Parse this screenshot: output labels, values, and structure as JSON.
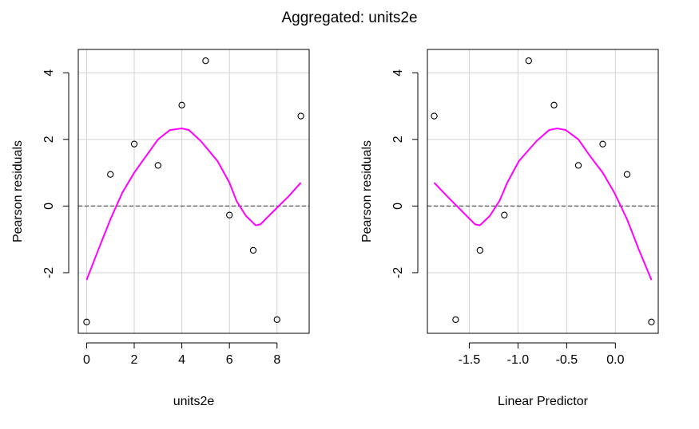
{
  "title": "Aggregated: units2e",
  "colors": {
    "smooth": "#ff00ff",
    "grid": "#d3d3d3",
    "reference": "#555555",
    "points": "#000000"
  },
  "chart_data": [
    {
      "type": "scatter",
      "xlabel": "units2e",
      "ylabel": "Pearson residuals",
      "xlim": [
        -0.35,
        9.35
      ],
      "ylim": [
        -3.82,
        4.7
      ],
      "xticks": [
        0,
        2,
        4,
        6,
        8
      ],
      "xtick_labels": [
        "0",
        "2",
        "4",
        "6",
        "8"
      ],
      "yticks": [
        -2,
        0,
        2,
        4
      ],
      "ytick_labels": [
        "-2",
        "0",
        "2",
        "4"
      ],
      "grid": true,
      "reference_line_y": 0,
      "points": [
        {
          "x": 0,
          "y": -3.48
        },
        {
          "x": 1,
          "y": 0.95
        },
        {
          "x": 2,
          "y": 1.86
        },
        {
          "x": 3,
          "y": 1.22
        },
        {
          "x": 4,
          "y": 3.03
        },
        {
          "x": 5,
          "y": 4.36
        },
        {
          "x": 6,
          "y": -0.27
        },
        {
          "x": 7,
          "y": -1.33
        },
        {
          "x": 8,
          "y": -3.41
        },
        {
          "x": 9,
          "y": 2.7
        }
      ],
      "smooth": [
        {
          "x": 0,
          "y": -2.22
        },
        {
          "x": 0.5,
          "y": -1.3
        },
        {
          "x": 1,
          "y": -0.4
        },
        {
          "x": 1.5,
          "y": 0.4
        },
        {
          "x": 2,
          "y": 1.0
        },
        {
          "x": 2.5,
          "y": 1.5
        },
        {
          "x": 3,
          "y": 2.0
        },
        {
          "x": 3.5,
          "y": 2.28
        },
        {
          "x": 4,
          "y": 2.33
        },
        {
          "x": 4.3,
          "y": 2.28
        },
        {
          "x": 4.8,
          "y": 1.95
        },
        {
          "x": 5.5,
          "y": 1.35
        },
        {
          "x": 6,
          "y": 0.7
        },
        {
          "x": 6.3,
          "y": 0.15
        },
        {
          "x": 6.7,
          "y": -0.3
        },
        {
          "x": 7.1,
          "y": -0.58
        },
        {
          "x": 7.3,
          "y": -0.55
        },
        {
          "x": 8,
          "y": -0.05
        },
        {
          "x": 8.5,
          "y": 0.3
        },
        {
          "x": 9,
          "y": 0.7
        }
      ]
    },
    {
      "type": "scatter",
      "xlabel": "Linear Predictor",
      "ylabel": "Pearson residuals",
      "xlim": [
        -1.93,
        0.44
      ],
      "ylim": [
        -3.82,
        4.7
      ],
      "xticks": [
        -1.5,
        -1.0,
        -0.5,
        0.0
      ],
      "xtick_labels": [
        "-1.5",
        "-1.0",
        "-0.5",
        "0.0"
      ],
      "yticks": [
        -2,
        0,
        2,
        4
      ],
      "ytick_labels": [
        "-2",
        "0",
        "2",
        "4"
      ],
      "grid": true,
      "reference_line_y": 0,
      "points": [
        {
          "x": -1.86,
          "y": 2.7
        },
        {
          "x": -1.64,
          "y": -3.41
        },
        {
          "x": -1.39,
          "y": -1.33
        },
        {
          "x": -1.14,
          "y": -0.27
        },
        {
          "x": -0.89,
          "y": 4.36
        },
        {
          "x": -0.63,
          "y": 3.03
        },
        {
          "x": -0.38,
          "y": 1.22
        },
        {
          "x": -0.13,
          "y": 1.86
        },
        {
          "x": 0.12,
          "y": 0.95
        },
        {
          "x": 0.37,
          "y": -3.48
        }
      ],
      "smooth": [
        {
          "x": -1.86,
          "y": 0.7
        },
        {
          "x": -1.73,
          "y": 0.3
        },
        {
          "x": -1.61,
          "y": -0.05
        },
        {
          "x": -1.44,
          "y": -0.55
        },
        {
          "x": -1.39,
          "y": -0.58
        },
        {
          "x": -1.29,
          "y": -0.3
        },
        {
          "x": -1.19,
          "y": 0.15
        },
        {
          "x": -1.11,
          "y": 0.7
        },
        {
          "x": -0.99,
          "y": 1.35
        },
        {
          "x": -0.81,
          "y": 1.95
        },
        {
          "x": -0.68,
          "y": 2.28
        },
        {
          "x": -0.6,
          "y": 2.33
        },
        {
          "x": -0.51,
          "y": 2.28
        },
        {
          "x": -0.38,
          "y": 2.0
        },
        {
          "x": -0.26,
          "y": 1.5
        },
        {
          "x": -0.13,
          "y": 1.0
        },
        {
          "x": -0.01,
          "y": 0.4
        },
        {
          "x": 0.12,
          "y": -0.4
        },
        {
          "x": 0.24,
          "y": -1.3
        },
        {
          "x": 0.37,
          "y": -2.22
        }
      ]
    }
  ]
}
